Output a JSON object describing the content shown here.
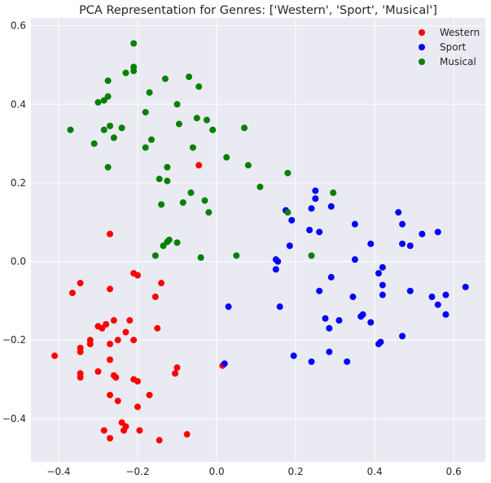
{
  "chart_data": {
    "type": "scatter",
    "title": "PCA Representation for Genres: ['Western', 'Sport', 'Musical']",
    "xlabel": "",
    "ylabel": "",
    "xlim": [
      -0.47,
      0.68
    ],
    "ylim": [
      -0.51,
      0.62
    ],
    "grid": true,
    "legend_position": "top-right",
    "x_ticks": [
      -0.4,
      -0.2,
      0.0,
      0.2,
      0.4,
      0.6
    ],
    "x_tick_labels": [
      "−0.4",
      "−0.2",
      "0.0",
      "0.2",
      "0.4",
      "0.6"
    ],
    "y_ticks": [
      -0.4,
      -0.2,
      0.0,
      0.2,
      0.4,
      0.6
    ],
    "y_tick_labels": [
      "−0.4",
      "−0.2",
      "0.0",
      "0.2",
      "0.4",
      "0.6"
    ],
    "series": [
      {
        "name": "Western",
        "color": "#ff0000",
        "points": [
          [
            -0.27,
            0.07
          ],
          [
            -0.045,
            0.245
          ],
          [
            -0.21,
            -0.03
          ],
          [
            -0.2,
            -0.035
          ],
          [
            -0.345,
            -0.055
          ],
          [
            -0.365,
            -0.08
          ],
          [
            -0.27,
            -0.07
          ],
          [
            -0.155,
            -0.09
          ],
          [
            -0.14,
            -0.055
          ],
          [
            -0.22,
            -0.15
          ],
          [
            -0.3,
            -0.165
          ],
          [
            -0.29,
            -0.17
          ],
          [
            -0.26,
            -0.15
          ],
          [
            -0.28,
            -0.16
          ],
          [
            -0.25,
            -0.2
          ],
          [
            -0.23,
            -0.18
          ],
          [
            -0.21,
            -0.2
          ],
          [
            -0.15,
            -0.17
          ],
          [
            -0.32,
            -0.2
          ],
          [
            -0.32,
            -0.21
          ],
          [
            -0.27,
            -0.21
          ],
          [
            -0.345,
            -0.22
          ],
          [
            -0.345,
            -0.23
          ],
          [
            -0.41,
            -0.24
          ],
          [
            -0.27,
            -0.25
          ],
          [
            -0.3,
            -0.28
          ],
          [
            -0.345,
            -0.285
          ],
          [
            -0.345,
            -0.295
          ],
          [
            -0.26,
            -0.29
          ],
          [
            -0.255,
            -0.295
          ],
          [
            -0.21,
            -0.3
          ],
          [
            -0.2,
            -0.305
          ],
          [
            -0.1,
            -0.27
          ],
          [
            -0.105,
            -0.285
          ],
          [
            -0.17,
            -0.34
          ],
          [
            -0.27,
            -0.34
          ],
          [
            -0.25,
            -0.355
          ],
          [
            -0.2,
            -0.37
          ],
          [
            -0.24,
            -0.41
          ],
          [
            -0.23,
            -0.42
          ],
          [
            -0.285,
            -0.43
          ],
          [
            -0.235,
            -0.43
          ],
          [
            -0.195,
            -0.43
          ],
          [
            -0.27,
            -0.45
          ],
          [
            -0.145,
            -0.455
          ],
          [
            -0.075,
            -0.44
          ],
          [
            0.015,
            -0.265
          ]
        ]
      },
      {
        "name": "Sport",
        "color": "#0000ff",
        "points": [
          [
            0.25,
            0.18
          ],
          [
            0.25,
            0.16
          ],
          [
            0.29,
            0.14
          ],
          [
            0.24,
            0.135
          ],
          [
            0.175,
            0.13
          ],
          [
            0.19,
            0.105
          ],
          [
            0.235,
            0.08
          ],
          [
            0.26,
            0.075
          ],
          [
            0.185,
            0.04
          ],
          [
            0.35,
            0.095
          ],
          [
            0.46,
            0.125
          ],
          [
            0.47,
            0.095
          ],
          [
            0.47,
            0.045
          ],
          [
            0.49,
            0.04
          ],
          [
            0.52,
            0.07
          ],
          [
            0.56,
            0.075
          ],
          [
            0.39,
            0.045
          ],
          [
            0.15,
            0.005
          ],
          [
            0.155,
            0.0
          ],
          [
            0.15,
            -0.02
          ],
          [
            0.35,
            0.005
          ],
          [
            0.42,
            -0.015
          ],
          [
            0.41,
            -0.03
          ],
          [
            0.29,
            -0.04
          ],
          [
            0.42,
            -0.06
          ],
          [
            0.26,
            -0.075
          ],
          [
            0.345,
            -0.09
          ],
          [
            0.42,
            -0.085
          ],
          [
            0.49,
            -0.075
          ],
          [
            0.63,
            -0.065
          ],
          [
            0.545,
            -0.09
          ],
          [
            0.56,
            -0.11
          ],
          [
            0.58,
            -0.085
          ],
          [
            0.58,
            -0.135
          ],
          [
            0.03,
            -0.115
          ],
          [
            0.16,
            -0.115
          ],
          [
            0.37,
            -0.135
          ],
          [
            0.365,
            -0.14
          ],
          [
            0.275,
            -0.145
          ],
          [
            0.31,
            -0.15
          ],
          [
            0.285,
            -0.17
          ],
          [
            0.39,
            -0.155
          ],
          [
            0.41,
            -0.21
          ],
          [
            0.47,
            -0.19
          ],
          [
            0.415,
            -0.205
          ],
          [
            0.195,
            -0.24
          ],
          [
            0.285,
            -0.23
          ],
          [
            0.24,
            -0.255
          ],
          [
            0.33,
            -0.255
          ],
          [
            0.02,
            -0.26
          ]
        ]
      },
      {
        "name": "Musical",
        "color": "#008000",
        "points": [
          [
            -0.21,
            0.555
          ],
          [
            -0.21,
            0.495
          ],
          [
            -0.21,
            0.485
          ],
          [
            -0.23,
            0.48
          ],
          [
            -0.275,
            0.46
          ],
          [
            -0.13,
            0.465
          ],
          [
            -0.07,
            0.47
          ],
          [
            -0.045,
            0.445
          ],
          [
            -0.17,
            0.43
          ],
          [
            -0.275,
            0.42
          ],
          [
            -0.285,
            0.41
          ],
          [
            -0.3,
            0.405
          ],
          [
            -0.1,
            0.4
          ],
          [
            -0.18,
            0.38
          ],
          [
            -0.05,
            0.365
          ],
          [
            -0.025,
            0.36
          ],
          [
            -0.27,
            0.345
          ],
          [
            -0.24,
            0.34
          ],
          [
            -0.285,
            0.335
          ],
          [
            -0.095,
            0.35
          ],
          [
            -0.01,
            0.335
          ],
          [
            0.07,
            0.34
          ],
          [
            -0.37,
            0.335
          ],
          [
            -0.26,
            0.315
          ],
          [
            -0.165,
            0.31
          ],
          [
            -0.31,
            0.3
          ],
          [
            -0.06,
            0.29
          ],
          [
            -0.18,
            0.29
          ],
          [
            0.025,
            0.265
          ],
          [
            0.08,
            0.245
          ],
          [
            -0.275,
            0.24
          ],
          [
            -0.125,
            0.24
          ],
          [
            0.18,
            0.225
          ],
          [
            -0.145,
            0.21
          ],
          [
            -0.125,
            0.205
          ],
          [
            0.11,
            0.19
          ],
          [
            0.295,
            0.175
          ],
          [
            -0.065,
            0.175
          ],
          [
            -0.03,
            0.155
          ],
          [
            -0.14,
            0.145
          ],
          [
            -0.085,
            0.15
          ],
          [
            -0.02,
            0.125
          ],
          [
            0.18,
            0.125
          ],
          [
            -0.12,
            0.055
          ],
          [
            -0.125,
            0.05
          ],
          [
            -0.135,
            0.04
          ],
          [
            -0.1,
            0.048
          ],
          [
            -0.155,
            0.015
          ],
          [
            -0.04,
            0.01
          ],
          [
            0.05,
            0.015
          ],
          [
            0.24,
            0.015
          ]
        ]
      }
    ]
  }
}
